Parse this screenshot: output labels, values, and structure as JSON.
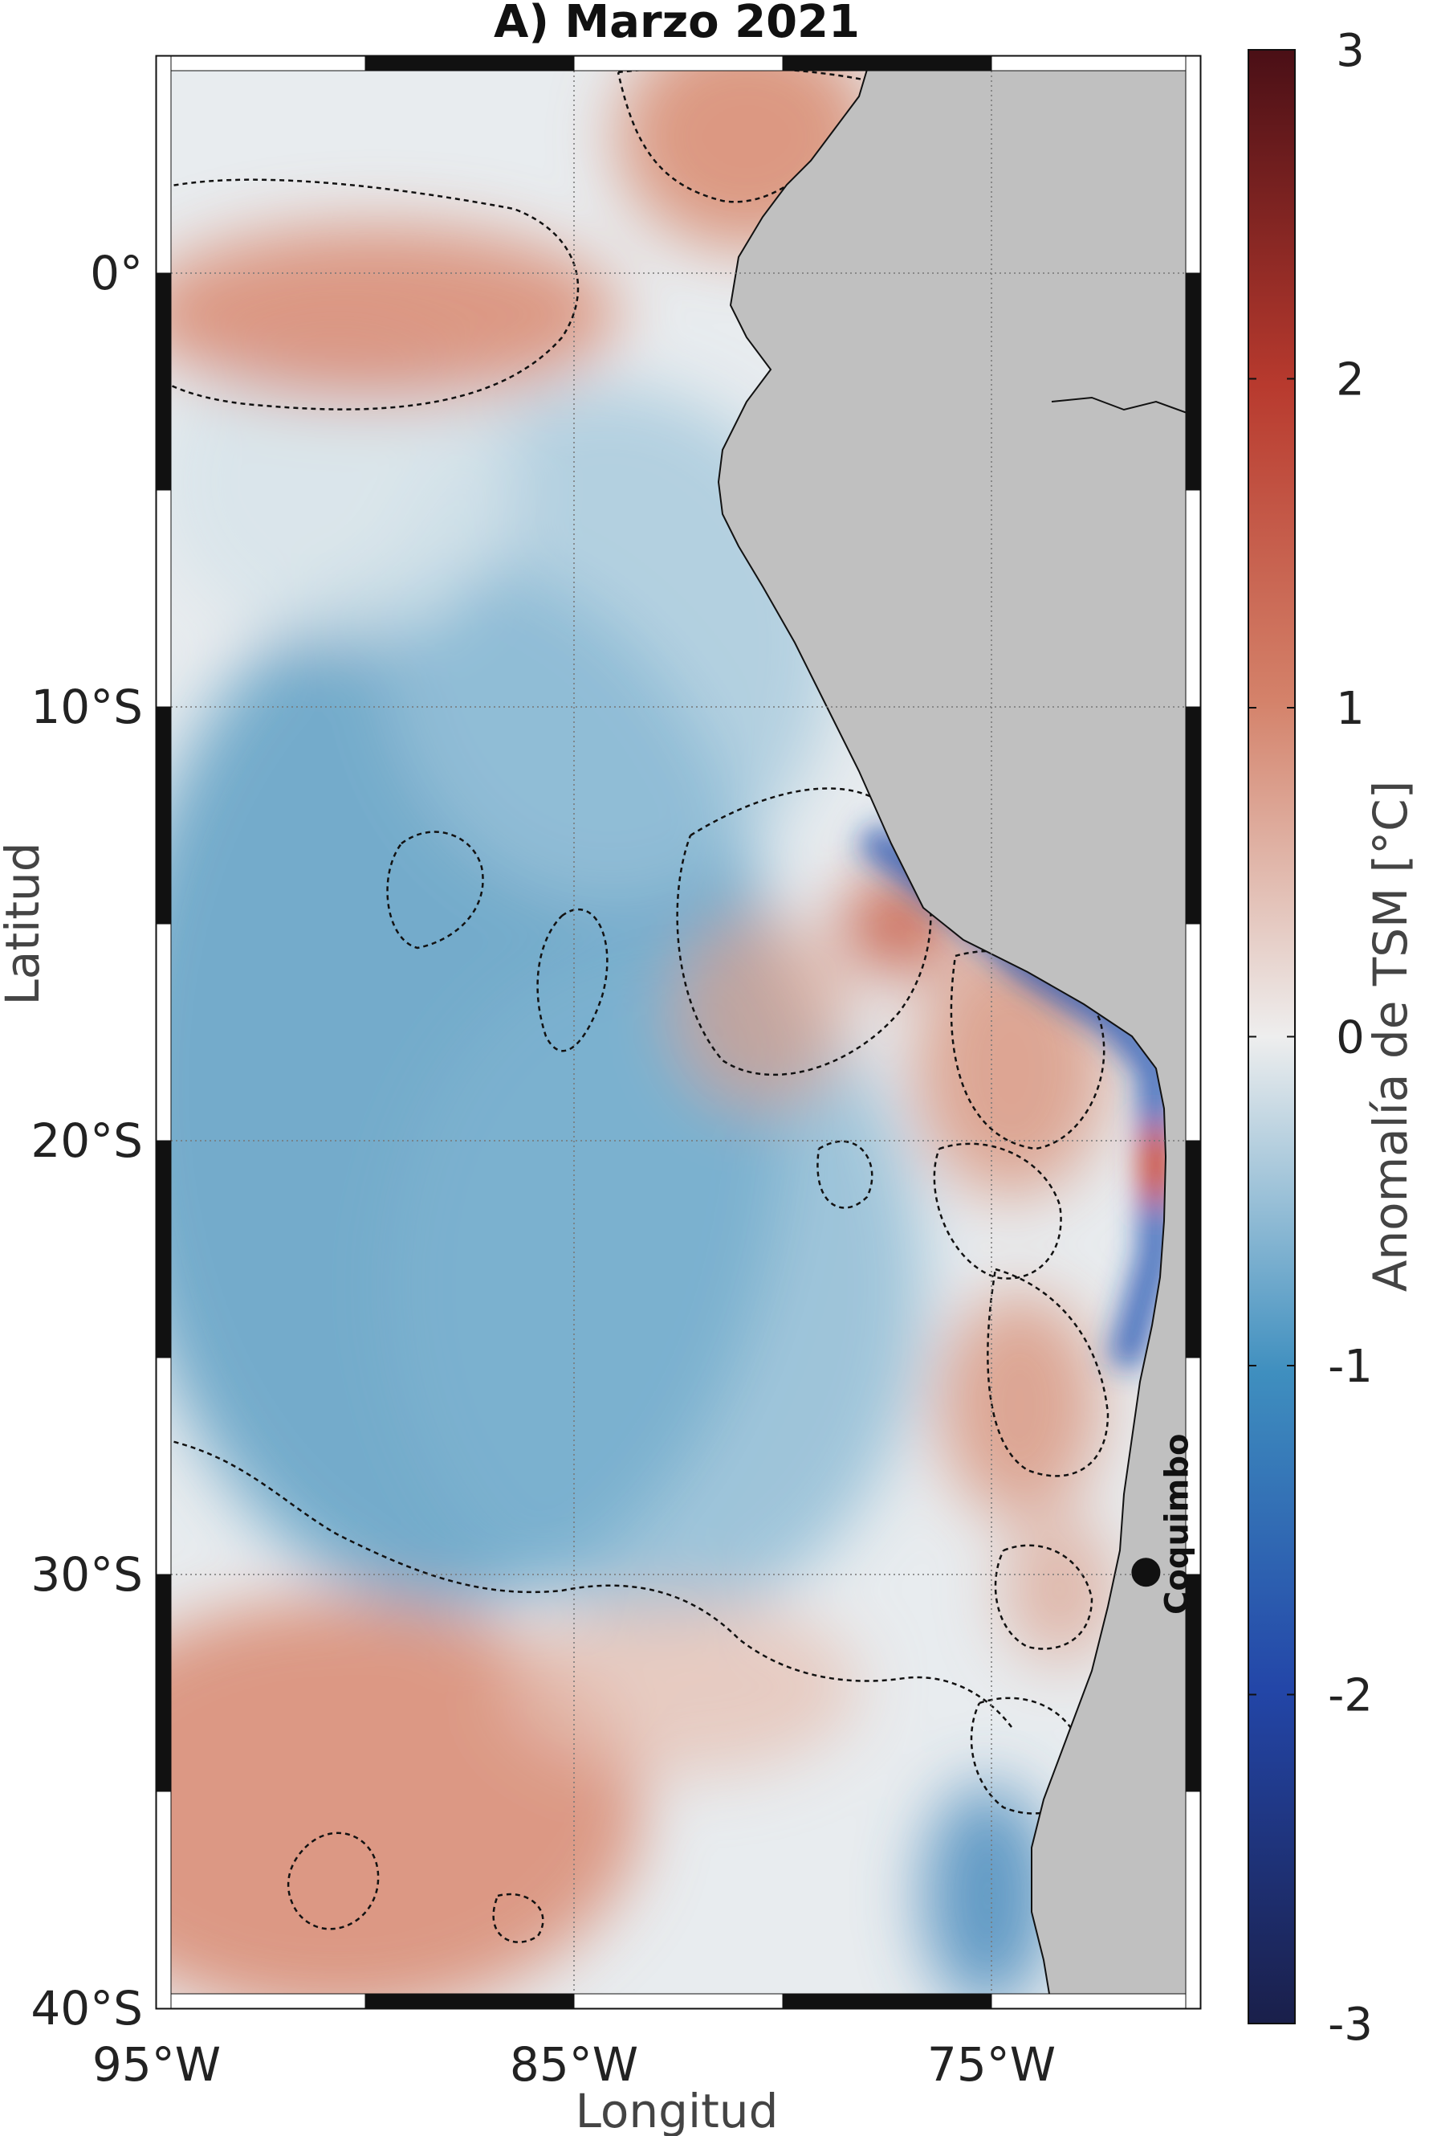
{
  "title": "A) Marzo 2021",
  "map": {
    "type": "heatmap",
    "variable": "Anomalía de TSM",
    "xlabel": "Longitud",
    "ylabel": "Latitud",
    "lon_range": [
      -95,
      -70
    ],
    "lat_range": [
      -40,
      5
    ],
    "x_ticks": [
      {
        "value": -95,
        "label": "95°W"
      },
      {
        "value": -85,
        "label": "85°W"
      },
      {
        "value": -75,
        "label": "75°W"
      }
    ],
    "y_ticks": [
      {
        "value": 0,
        "label": "0°"
      },
      {
        "value": -10,
        "label": "10°S"
      },
      {
        "value": -20,
        "label": "20°S"
      },
      {
        "value": -30,
        "label": "30°S"
      },
      {
        "value": -40,
        "label": "40°S"
      }
    ],
    "grid": true,
    "land_color": "#c0c0c0",
    "contour": "0 °C anomaly, dashed black"
  },
  "colorbar": {
    "title": "Anomalía de TSM [°C]",
    "min": -3,
    "max": 3,
    "ticks": [
      {
        "value": 3,
        "label": "3"
      },
      {
        "value": 2,
        "label": "2"
      },
      {
        "value": 1,
        "label": "1"
      },
      {
        "value": 0,
        "label": "0"
      },
      {
        "value": -1,
        "label": "-1"
      },
      {
        "value": -2,
        "label": "-2"
      },
      {
        "value": -3,
        "label": "-3"
      }
    ],
    "colors": [
      "#1a1f4a",
      "#2346a8",
      "#3f8fbf",
      "#eeeeee",
      "#d4826a",
      "#b83a2e",
      "#4a0f16"
    ]
  },
  "marker": {
    "name": "Coquimbo",
    "lon": -71.3,
    "lat": -29.95
  }
}
